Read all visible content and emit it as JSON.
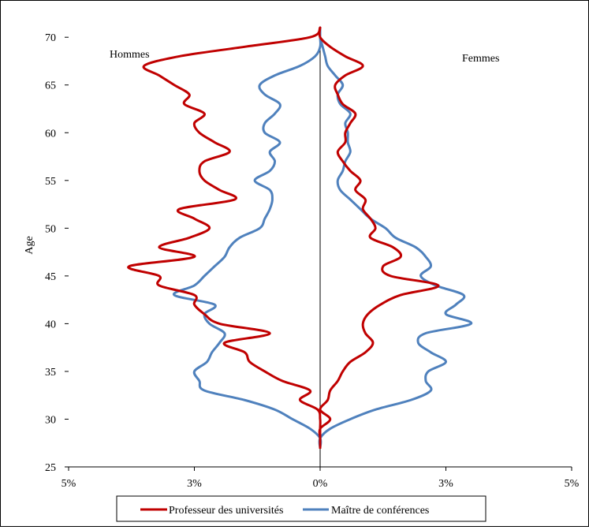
{
  "chart_data": {
    "type": "line",
    "title": "",
    "xlabel": "",
    "ylabel": "Age",
    "xlim": [
      -5,
      5
    ],
    "ylim": [
      25,
      72
    ],
    "x_tick_labels": [
      "5%",
      "3%",
      "0%",
      "3%",
      "5%"
    ],
    "y_ticks": [
      25,
      30,
      35,
      40,
      45,
      50,
      55,
      60,
      65,
      70
    ],
    "annotations": {
      "left": "Hommes",
      "right": "Femmes"
    },
    "legend_position": "bottom",
    "series": [
      {
        "name": "Professeur des universités",
        "color": "#C00000",
        "hommes": [
          [
            27,
            0.0
          ],
          [
            28,
            0.0
          ],
          [
            29,
            0.0
          ],
          [
            30,
            0.0
          ],
          [
            31,
            -0.05
          ],
          [
            32,
            -0.4
          ],
          [
            33,
            -0.2
          ],
          [
            34,
            -0.75
          ],
          [
            35,
            -1.1
          ],
          [
            36,
            -1.4
          ],
          [
            37,
            -1.5
          ],
          [
            38,
            -1.9
          ],
          [
            39,
            -1.0
          ],
          [
            40,
            -2.0
          ],
          [
            41,
            -2.3
          ],
          [
            42,
            -2.5
          ],
          [
            43,
            -2.5
          ],
          [
            44,
            -3.2
          ],
          [
            45,
            -3.2
          ],
          [
            46,
            -3.8
          ],
          [
            47,
            -2.5
          ],
          [
            48,
            -3.2
          ],
          [
            49,
            -2.6
          ],
          [
            50,
            -2.2
          ],
          [
            51,
            -2.5
          ],
          [
            52,
            -2.8
          ],
          [
            53,
            -1.7
          ],
          [
            54,
            -2.0
          ],
          [
            55,
            -2.3
          ],
          [
            56,
            -2.4
          ],
          [
            57,
            -2.3
          ],
          [
            58,
            -1.8
          ],
          [
            59,
            -2.1
          ],
          [
            60,
            -2.4
          ],
          [
            61,
            -2.5
          ],
          [
            62,
            -2.3
          ],
          [
            63,
            -2.7
          ],
          [
            64,
            -2.6
          ],
          [
            65,
            -2.9
          ],
          [
            66,
            -3.2
          ],
          [
            67,
            -3.5
          ],
          [
            68,
            -2.8
          ],
          [
            69,
            -1.5
          ],
          [
            70,
            -0.2
          ],
          [
            71,
            0.0
          ]
        ],
        "femmes": [
          [
            27,
            0.0
          ],
          [
            28,
            0.0
          ],
          [
            29,
            0.0
          ],
          [
            30,
            0.2
          ],
          [
            31,
            0.0
          ],
          [
            32,
            0.15
          ],
          [
            33,
            0.2
          ],
          [
            34,
            0.35
          ],
          [
            35,
            0.45
          ],
          [
            36,
            0.6
          ],
          [
            37,
            0.9
          ],
          [
            38,
            1.05
          ],
          [
            39,
            0.9
          ],
          [
            40,
            0.85
          ],
          [
            41,
            0.95
          ],
          [
            42,
            1.2
          ],
          [
            43,
            1.6
          ],
          [
            44,
            2.35
          ],
          [
            45,
            1.4
          ],
          [
            46,
            1.25
          ],
          [
            47,
            1.6
          ],
          [
            48,
            1.45
          ],
          [
            49,
            1.0
          ],
          [
            50,
            1.1
          ],
          [
            51,
            1.0
          ],
          [
            52,
            0.85
          ],
          [
            53,
            0.9
          ],
          [
            54,
            0.7
          ],
          [
            55,
            0.8
          ],
          [
            56,
            0.6
          ],
          [
            57,
            0.45
          ],
          [
            58,
            0.35
          ],
          [
            59,
            0.5
          ],
          [
            60,
            0.5
          ],
          [
            61,
            0.6
          ],
          [
            62,
            0.7
          ],
          [
            63,
            0.45
          ],
          [
            64,
            0.35
          ],
          [
            65,
            0.3
          ],
          [
            66,
            0.5
          ],
          [
            67,
            0.85
          ],
          [
            68,
            0.5
          ],
          [
            69,
            0.2
          ],
          [
            70,
            0.0
          ],
          [
            71,
            0.0
          ]
        ]
      },
      {
        "name": "Maître de conférences",
        "color": "#4F81BD",
        "hommes": [
          [
            27,
            0.0
          ],
          [
            28,
            0.0
          ],
          [
            29,
            -0.2
          ],
          [
            30,
            -0.55
          ],
          [
            31,
            -0.9
          ],
          [
            32,
            -1.5
          ],
          [
            33,
            -2.3
          ],
          [
            34,
            -2.4
          ],
          [
            35,
            -2.5
          ],
          [
            36,
            -2.25
          ],
          [
            37,
            -2.15
          ],
          [
            38,
            -2.0
          ],
          [
            39,
            -1.9
          ],
          [
            40,
            -2.2
          ],
          [
            41,
            -2.3
          ],
          [
            42,
            -2.1
          ],
          [
            43,
            -2.9
          ],
          [
            44,
            -2.5
          ],
          [
            45,
            -2.3
          ],
          [
            46,
            -2.1
          ],
          [
            47,
            -1.9
          ],
          [
            48,
            -1.8
          ],
          [
            49,
            -1.6
          ],
          [
            50,
            -1.2
          ],
          [
            51,
            -1.1
          ],
          [
            52,
            -1.0
          ],
          [
            53,
            -0.95
          ],
          [
            54,
            -1.0
          ],
          [
            55,
            -1.3
          ],
          [
            56,
            -1.0
          ],
          [
            57,
            -0.9
          ],
          [
            58,
            -1.0
          ],
          [
            59,
            -0.8
          ],
          [
            60,
            -1.1
          ],
          [
            61,
            -1.1
          ],
          [
            62,
            -0.9
          ],
          [
            63,
            -0.8
          ],
          [
            64,
            -1.1
          ],
          [
            65,
            -1.2
          ],
          [
            66,
            -0.9
          ],
          [
            67,
            -0.4
          ],
          [
            68,
            -0.1
          ],
          [
            69,
            0.0
          ],
          [
            70,
            0.0
          ],
          [
            71,
            0.0
          ]
        ],
        "femmes": [
          [
            27,
            0.0
          ],
          [
            28,
            0.0
          ],
          [
            29,
            0.2
          ],
          [
            30,
            0.6
          ],
          [
            31,
            1.1
          ],
          [
            32,
            1.8
          ],
          [
            33,
            2.2
          ],
          [
            34,
            2.1
          ],
          [
            35,
            2.15
          ],
          [
            36,
            2.5
          ],
          [
            37,
            2.2
          ],
          [
            38,
            1.95
          ],
          [
            39,
            2.1
          ],
          [
            40,
            3.0
          ],
          [
            41,
            2.5
          ],
          [
            42,
            2.7
          ],
          [
            43,
            2.85
          ],
          [
            44,
            2.3
          ],
          [
            45,
            2.0
          ],
          [
            46,
            2.2
          ],
          [
            47,
            2.1
          ],
          [
            48,
            1.9
          ],
          [
            49,
            1.5
          ],
          [
            50,
            1.3
          ],
          [
            51,
            1.0
          ],
          [
            52,
            0.8
          ],
          [
            53,
            0.6
          ],
          [
            54,
            0.4
          ],
          [
            55,
            0.35
          ],
          [
            56,
            0.45
          ],
          [
            57,
            0.5
          ],
          [
            58,
            0.6
          ],
          [
            59,
            0.55
          ],
          [
            60,
            0.55
          ],
          [
            61,
            0.5
          ],
          [
            62,
            0.6
          ],
          [
            63,
            0.4
          ],
          [
            64,
            0.35
          ],
          [
            65,
            0.45
          ],
          [
            66,
            0.3
          ],
          [
            67,
            0.15
          ],
          [
            68,
            0.1
          ],
          [
            69,
            0.05
          ],
          [
            70,
            0.0
          ],
          [
            71,
            0.0
          ]
        ]
      }
    ]
  }
}
